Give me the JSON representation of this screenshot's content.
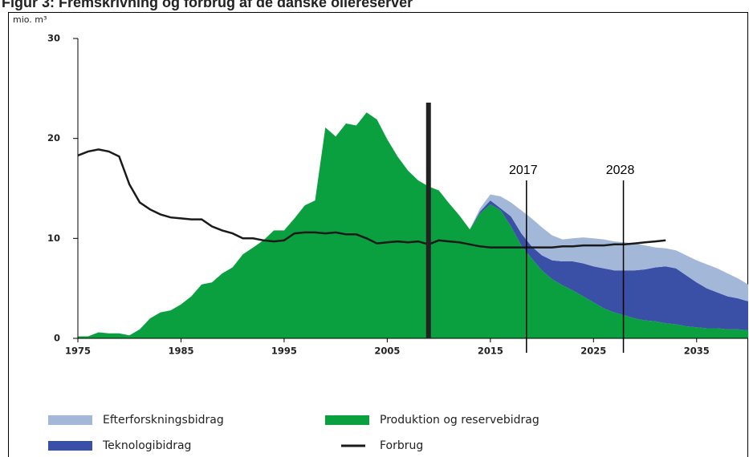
{
  "chart_data": {
    "type": "stacked_area",
    "title": "Figur 3: Fremskrivning og forbrug af de danske oliereserver",
    "y_label": "mio. m³",
    "x": [
      1975,
      1976,
      1977,
      1978,
      1979,
      1980,
      1981,
      1982,
      1983,
      1984,
      1985,
      1986,
      1987,
      1988,
      1989,
      1990,
      1991,
      1992,
      1993,
      1994,
      1995,
      1996,
      1997,
      1998,
      1999,
      2000,
      2001,
      2002,
      2003,
      2004,
      2005,
      2006,
      2007,
      2008,
      2009,
      2010,
      2011,
      2012,
      2013,
      2014,
      2015,
      2016,
      2017,
      2018,
      2019,
      2020,
      2021,
      2022,
      2023,
      2024,
      2025,
      2026,
      2027,
      2028,
      2029,
      2030,
      2031,
      2032,
      2033,
      2034,
      2035,
      2036,
      2037,
      2038,
      2039,
      2040
    ],
    "series": [
      {
        "name": "Produktion og reservebidrag",
        "color": "#0aa040",
        "values": [
          0.2,
          0.2,
          0.6,
          0.5,
          0.5,
          0.3,
          0.9,
          2,
          2.6,
          2.8,
          3.4,
          4.2,
          5.4,
          5.6,
          6.5,
          7.1,
          8.4,
          9.1,
          9.8,
          10.8,
          10.8,
          12,
          13.3,
          13.8,
          21.1,
          20.2,
          21.5,
          21.3,
          22.6,
          21.9,
          19.9,
          18.2,
          16.8,
          15.8,
          15.2,
          14.8,
          13.5,
          12.3,
          10.9,
          12.5,
          13.4,
          12.8,
          11.2,
          9.3,
          8,
          6.8,
          5.9,
          5.3,
          4.8,
          4.2,
          3.6,
          3,
          2.6,
          2.3,
          2,
          1.8,
          1.7,
          1.5,
          1.4,
          1.2,
          1.1,
          1,
          1,
          0.9,
          0.9,
          0.8
        ]
      },
      {
        "name": "Teknologibidrag",
        "color": "#3a4fa6",
        "values": [
          null,
          null,
          null,
          null,
          null,
          null,
          null,
          null,
          null,
          null,
          null,
          null,
          null,
          null,
          null,
          null,
          null,
          null,
          null,
          null,
          null,
          null,
          null,
          null,
          null,
          null,
          null,
          null,
          null,
          null,
          null,
          null,
          null,
          null,
          null,
          null,
          null,
          null,
          0,
          0.2,
          0.4,
          0.2,
          1,
          1.2,
          1.2,
          1.5,
          1.9,
          2.4,
          2.9,
          3.3,
          3.6,
          4,
          4.2,
          4.5,
          4.8,
          5.1,
          5.4,
          5.7,
          5.6,
          5.1,
          4.5,
          4,
          3.6,
          3.3,
          3.1,
          2.9
        ]
      },
      {
        "name": "Efterforskningsbidrag",
        "color": "#a3b8d8",
        "values": [
          null,
          null,
          null,
          null,
          null,
          null,
          null,
          null,
          null,
          null,
          null,
          null,
          null,
          null,
          null,
          null,
          null,
          null,
          null,
          null,
          null,
          null,
          null,
          null,
          null,
          null,
          null,
          null,
          null,
          null,
          null,
          null,
          null,
          null,
          null,
          null,
          null,
          null,
          0,
          0.3,
          0.6,
          1.2,
          1.4,
          2.3,
          2.8,
          2.8,
          2.5,
          2.2,
          2.3,
          2.6,
          2.8,
          2.9,
          2.9,
          2.8,
          2.7,
          2.4,
          2,
          1.8,
          1.8,
          2,
          2.2,
          2.4,
          2.4,
          2.3,
          2,
          1.7
        ]
      },
      {
        "name": "Forbrug",
        "color": "#1a1a1a",
        "type": "line",
        "values": [
          18.3,
          18.7,
          18.9,
          18.7,
          18.2,
          15.4,
          13.6,
          12.9,
          12.4,
          12.1,
          12,
          11.9,
          11.9,
          11.2,
          10.8,
          10.5,
          10,
          10,
          9.8,
          9.7,
          9.8,
          10.5,
          10.6,
          10.6,
          10.5,
          10.6,
          10.4,
          10.4,
          10,
          9.5,
          9.6,
          9.7,
          9.6,
          9.7,
          9.4,
          9.8,
          9.7,
          9.6,
          9.4,
          9.2,
          9.1,
          9.1,
          9.1,
          9.1,
          9.1,
          9.1,
          9.1,
          9.2,
          9.2,
          9.3,
          9.3,
          9.3,
          9.4,
          9.4,
          9.5,
          9.6,
          9.7,
          9.8,
          null,
          null,
          null,
          null,
          null,
          null,
          null,
          null
        ]
      }
    ],
    "markers": [
      {
        "x": 2009
      },
      {
        "label": "2017",
        "x": 2018.5
      },
      {
        "label": "2028",
        "x": 2027.9
      }
    ],
    "xlim": [
      1975,
      2040
    ],
    "xticks": [
      1975,
      1985,
      1995,
      2005,
      2015,
      2025,
      2035
    ],
    "ylim": [
      0,
      30
    ],
    "yticks": [
      0,
      10,
      20,
      30
    ]
  }
}
